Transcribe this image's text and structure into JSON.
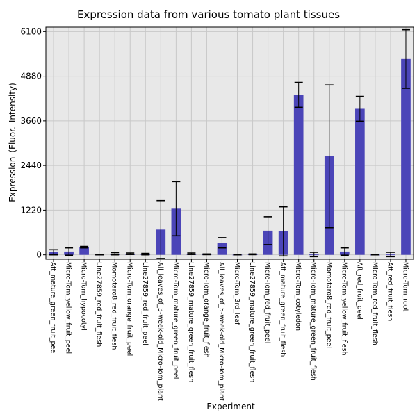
{
  "chart_data": {
    "type": "bar",
    "title": "Expression data from various tomato plant tissues",
    "xlabel": "Experiment",
    "ylabel": "Expression_(Fluor._Intensity)",
    "ylim": [
      -120,
      6220
    ],
    "yticks": [
      0,
      1220,
      2440,
      3660,
      4880,
      6100
    ],
    "grid": true,
    "bar_color": "#4b45b8",
    "plot_background": "#e8e8e8",
    "grid_color": "#c8c8c8",
    "categories": [
      "Aft_mature_green_fruit_peel",
      "Micro-Tom_yellow_fruit_peel",
      "Micro-Tom_hypocotyl",
      "Line27859_red_fruit_flesh",
      "Momotaro8_red_fruit_flesh",
      "Micro-Tom_orange_fruit_peel",
      "Line27859_red_fruit_peel",
      "All_leaves_of_3-week-old_Micro-Tom_plant",
      "Micro-Tom_mature_green_fruit_peel",
      "Line27859_mature_green_fruit_flesh",
      "Micro-Tom_orange_fruit_flesh",
      "All_leaves_of_5-week-old_Micro-Tom_plant",
      "Micro-Tom_3rd_leaf",
      "Line27859_mature_green_fruit_flesh",
      "Micro-Tom_red_fruit_peel",
      "Aft_mature_green_fruit_flesh",
      "Micro-Tom_cotyledon",
      "Micro-Tom_mature_green_fruit_flesh",
      "Momotaro8_red_fruit_peel",
      "Micro-Tom_yellow_fruit_flesh",
      "Aft_red_fruit_peel",
      "Micro-Tom_red_fruit_flesh",
      "Aft_red_fruit_flesh",
      "Micro-Tom_root"
    ],
    "values": [
      70,
      90,
      210,
      5,
      30,
      30,
      20,
      690,
      1260,
      30,
      15,
      330,
      5,
      15,
      660,
      640,
      4370,
      10,
      2690,
      90,
      3990,
      5,
      10,
      5350
    ],
    "errors": [
      70,
      100,
      20,
      5,
      30,
      20,
      20,
      790,
      740,
      20,
      10,
      140,
      5,
      10,
      380,
      670,
      340,
      60,
      1950,
      100,
      340,
      5,
      60,
      800
    ]
  }
}
